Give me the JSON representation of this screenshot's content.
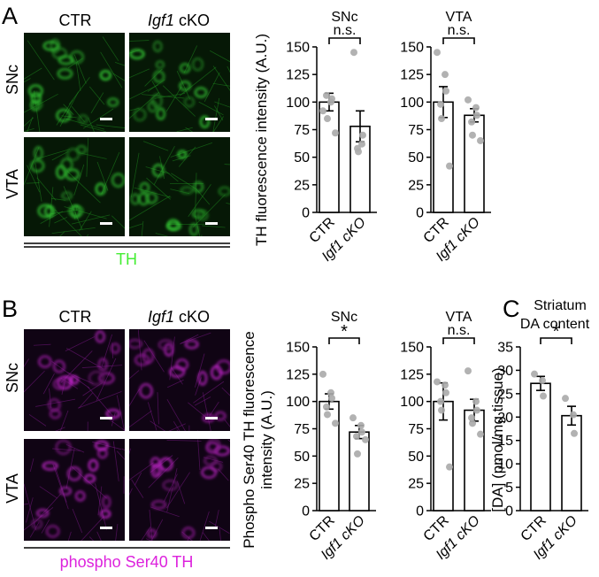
{
  "panels": {
    "A": {
      "letter": "A",
      "col_ctr": "CTR",
      "col_cko_gene": "Igf1",
      "col_cko_suffix": " cKO",
      "row_top": "SNc",
      "row_bottom": "VTA",
      "stain_label": "TH",
      "stain_color": "#44ee33",
      "ylabel": "TH fluorescence intensity (A.U.)"
    },
    "B": {
      "letter": "B",
      "col_ctr": "CTR",
      "col_cko_gene": "Igf1",
      "col_cko_suffix": " cKO",
      "row_top": "SNc",
      "row_bottom": "VTA",
      "stain_label": "phospho Ser40 TH",
      "stain_color": "#dd22dd",
      "ylabel_line1": "Phospho Ser40 TH fluorescence",
      "ylabel_line2": "intensity (A.U.)"
    },
    "C": {
      "letter": "C",
      "title_line1": "Striatum",
      "title_line2": "DA content",
      "ylabel": "[DA] (pmol/mg tissue)"
    }
  },
  "chart_data": [
    {
      "id": "A-SNc",
      "type": "bar",
      "title": "SNc",
      "ylabel": "TH fluorescence intensity (A.U.)",
      "categories": [
        "CTR",
        "Igf1 cKO"
      ],
      "values": [
        100,
        78
      ],
      "errors": [
        8,
        14
      ],
      "points": [
        [
          92,
          100,
          103,
          106,
          85,
          72
        ],
        [
          145,
          62,
          70,
          58,
          55
        ]
      ],
      "ylim": [
        0,
        150
      ],
      "yticks": [
        0,
        25,
        50,
        75,
        100,
        125,
        150
      ],
      "significance": "n.s."
    },
    {
      "id": "A-VTA",
      "type": "bar",
      "title": "VTA",
      "categories": [
        "CTR",
        "Igf1 cKO"
      ],
      "values": [
        100,
        88
      ],
      "errors": [
        14,
        6
      ],
      "points": [
        [
          145,
          125,
          110,
          98,
          85,
          42
        ],
        [
          102,
          95,
          88,
          82,
          70,
          65
        ]
      ],
      "ylim": [
        0,
        150
      ],
      "yticks": [
        0,
        25,
        50,
        75,
        100,
        125,
        150
      ],
      "significance": "n.s."
    },
    {
      "id": "B-SNc",
      "type": "bar",
      "title": "SNc",
      "ylabel": "Phospho Ser40 TH fluorescence intensity (A.U.)",
      "categories": [
        "CTR",
        "Igf1 cKO"
      ],
      "values": [
        100,
        72
      ],
      "errors": [
        7,
        6
      ],
      "points": [
        [
          125,
          108,
          103,
          95,
          88,
          80
        ],
        [
          85,
          78,
          72,
          68,
          52,
          65
        ]
      ],
      "ylim": [
        0,
        150
      ],
      "yticks": [
        0,
        25,
        50,
        75,
        100,
        125,
        150
      ],
      "significance": "*"
    },
    {
      "id": "B-VTA",
      "type": "bar",
      "title": "VTA",
      "categories": [
        "CTR",
        "Igf1 cKO"
      ],
      "values": [
        100,
        92
      ],
      "errors": [
        17,
        10
      ],
      "points": [
        [
          118,
          115,
          108,
          100,
          92,
          40
        ],
        [
          128,
          100,
          92,
          85,
          80,
          70
        ]
      ],
      "ylim": [
        0,
        150
      ],
      "yticks": [
        0,
        25,
        50,
        75,
        100,
        125,
        150
      ],
      "significance": "n.s."
    },
    {
      "id": "C",
      "type": "bar",
      "title": "Striatum DA content",
      "ylabel": "[DA] (pmol/mg tissue)",
      "categories": [
        "CTR",
        "Igf1 cKO"
      ],
      "values": [
        27.2,
        20.3
      ],
      "errors": [
        1.5,
        2.0
      ],
      "points": [
        [
          29.2,
          27.8,
          24.5
        ],
        [
          24.0,
          20.5,
          16.5
        ]
      ],
      "ylim": [
        0,
        35
      ],
      "yticks": [
        0,
        5,
        10,
        15,
        20,
        25,
        30,
        35
      ],
      "significance": "*"
    }
  ]
}
